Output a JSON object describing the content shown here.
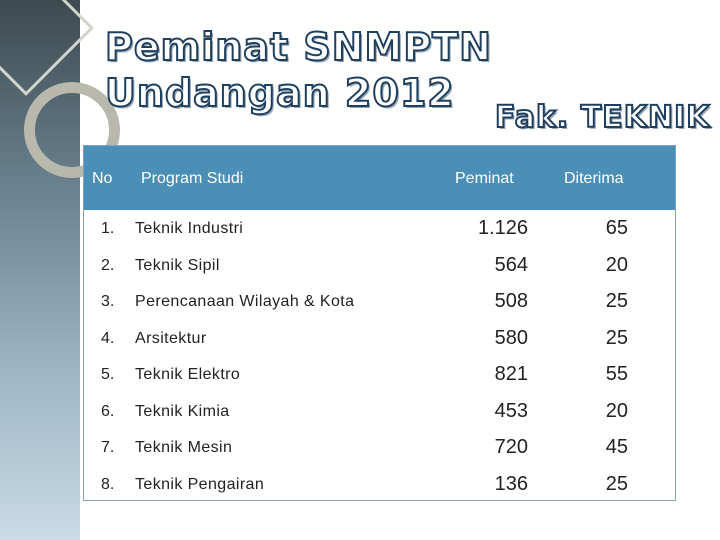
{
  "slide": {
    "title": "Peminat SNMPTN Undangan 2012",
    "faculty": "Fak. TEKNIK"
  },
  "table": {
    "headers": {
      "no": "No",
      "program": "Program Studi",
      "peminat": "Peminat",
      "diterima": "Diterima"
    },
    "rows": [
      {
        "no": "1.",
        "program": "Teknik Industri",
        "peminat": "1.126",
        "diterima": "65"
      },
      {
        "no": "2.",
        "program": "Teknik Sipil",
        "peminat": "564",
        "diterima": "20"
      },
      {
        "no": "3.",
        "program": "Perencanaan Wilayah & Kota",
        "peminat": "508",
        "diterima": "25"
      },
      {
        "no": "4.",
        "program": "Arsitektur",
        "peminat": "580",
        "diterima": "25"
      },
      {
        "no": "5.",
        "program": "Teknik Elektro",
        "peminat": "821",
        "diterima": "55"
      },
      {
        "no": "6.",
        "program": "Teknik Kimia",
        "peminat": "453",
        "diterima": "20"
      },
      {
        "no": "7.",
        "program": "Teknik Mesin",
        "peminat": "720",
        "diterima": "45"
      },
      {
        "no": "8.",
        "program": "Teknik Pengairan",
        "peminat": "136",
        "diterima": "25"
      }
    ]
  },
  "colors": {
    "header_bg": "#4b8fb6",
    "title_outline": "#1f3f5e"
  }
}
